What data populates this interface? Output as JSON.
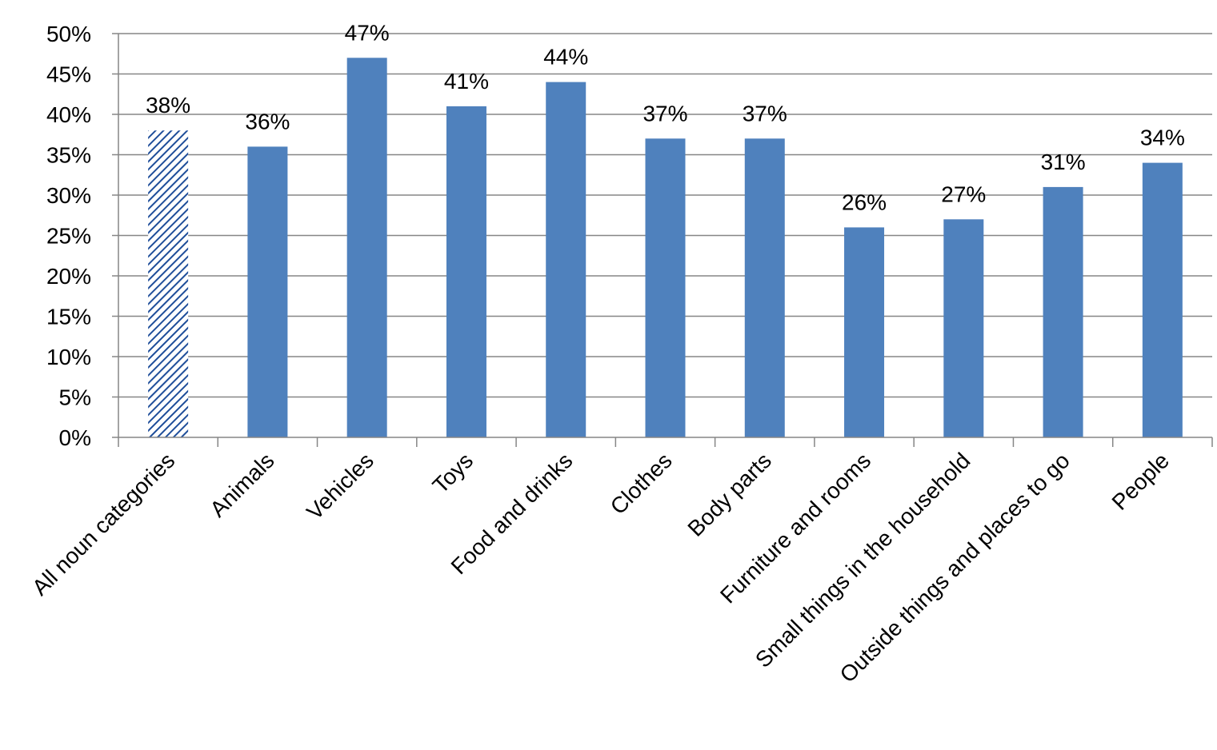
{
  "chart_data": {
    "type": "bar",
    "title": "",
    "xlabel": "",
    "ylabel": "",
    "ylim": [
      0,
      50
    ],
    "y_ticks": [
      0,
      5,
      10,
      15,
      20,
      25,
      30,
      35,
      40,
      45,
      50
    ],
    "y_tick_labels": [
      "0%",
      "5%",
      "10%",
      "15%",
      "20%",
      "25%",
      "30%",
      "35%",
      "40%",
      "45%",
      "50%"
    ],
    "grid": true,
    "legend": "none",
    "categories": [
      "All noun categories",
      "Animals",
      "Vehicles",
      "Toys",
      "Food and drinks",
      "Clothes",
      "Body parts",
      "Furniture and rooms",
      "Small things in the household",
      "Outside things and places to go",
      "People"
    ],
    "values": [
      38,
      36,
      47,
      41,
      44,
      37,
      37,
      26,
      27,
      31,
      34
    ],
    "data_labels": [
      "38%",
      "36%",
      "47%",
      "41%",
      "44%",
      "37%",
      "37%",
      "26%",
      "27%",
      "31%",
      "34%"
    ],
    "bar_styles": [
      "hatched",
      "solid",
      "solid",
      "solid",
      "solid",
      "solid",
      "solid",
      "solid",
      "solid",
      "solid",
      "solid"
    ],
    "colors": {
      "bar": "#4f81bd",
      "hatch": "#1f4e9a",
      "grid": "#868686",
      "axis": "#868686"
    }
  }
}
